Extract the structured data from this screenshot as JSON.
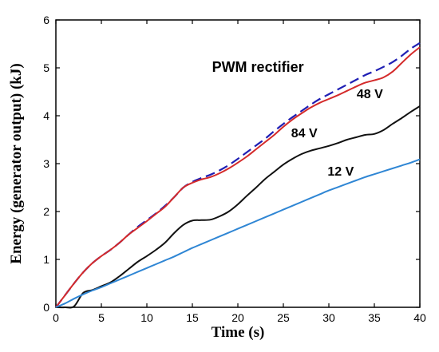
{
  "chart_data": {
    "type": "line",
    "xlabel": "Time (s)",
    "ylabel": "Energy (generator output) (kJ)",
    "xlim": [
      0,
      40
    ],
    "ylim": [
      0,
      6
    ],
    "xticks": [
      0,
      5,
      10,
      15,
      20,
      25,
      30,
      35,
      40
    ],
    "yticks": [
      0,
      1,
      2,
      3,
      4,
      5,
      6
    ],
    "grid": false,
    "annotations": [
      {
        "text": "PWM rectifier",
        "x": 22.2,
        "y": 4.92
      },
      {
        "text": "48 V",
        "x": 34.5,
        "y": 4.37
      },
      {
        "text": "84 V",
        "x": 27.3,
        "y": 3.55
      },
      {
        "text": "12 V",
        "x": 31.3,
        "y": 2.75
      }
    ],
    "series": [
      {
        "color": "#1f1fb4",
        "dashed": true,
        "x": [
          0,
          1,
          2,
          3,
          4,
          5,
          6,
          7,
          8,
          9,
          10,
          11,
          12,
          13,
          14,
          15,
          16,
          17,
          18,
          19,
          20,
          21,
          22,
          23,
          24,
          25,
          26,
          27,
          28,
          29,
          30,
          31,
          32,
          33,
          34,
          35,
          36,
          37,
          38,
          39,
          40
        ],
        "values": [
          0,
          0.25,
          0.5,
          0.73,
          0.92,
          1.07,
          1.2,
          1.35,
          1.52,
          1.68,
          1.82,
          1.96,
          2.12,
          2.3,
          2.5,
          2.62,
          2.7,
          2.77,
          2.86,
          2.97,
          3.1,
          3.24,
          3.38,
          3.52,
          3.68,
          3.83,
          3.97,
          4.1,
          4.23,
          4.35,
          4.45,
          4.55,
          4.65,
          4.75,
          4.85,
          4.93,
          5.02,
          5.12,
          5.25,
          5.4,
          5.52
        ]
      },
      {
        "color": "#d42a2a",
        "dashed": false,
        "x": [
          0,
          1,
          2,
          3,
          4,
          5,
          6,
          7,
          8,
          9,
          10,
          11,
          12,
          13,
          14,
          15,
          16,
          17,
          18,
          19,
          20,
          21,
          22,
          23,
          24,
          25,
          26,
          27,
          28,
          29,
          30,
          31,
          32,
          33,
          34,
          35,
          36,
          37,
          38,
          39,
          40
        ],
        "values": [
          0,
          0.25,
          0.5,
          0.73,
          0.92,
          1.07,
          1.2,
          1.35,
          1.52,
          1.66,
          1.8,
          1.95,
          2.1,
          2.3,
          2.5,
          2.6,
          2.67,
          2.72,
          2.8,
          2.9,
          3.02,
          3.15,
          3.3,
          3.45,
          3.6,
          3.77,
          3.92,
          4.05,
          4.17,
          4.27,
          4.35,
          4.43,
          4.52,
          4.61,
          4.69,
          4.74,
          4.8,
          4.92,
          5.1,
          5.28,
          5.43
        ]
      },
      {
        "color": "#111111",
        "dashed": false,
        "x": [
          0,
          1,
          2,
          3,
          4,
          5,
          6,
          7,
          8,
          9,
          10,
          11,
          12,
          13,
          14,
          15,
          16,
          17,
          18,
          19,
          20,
          21,
          22,
          23,
          24,
          25,
          26,
          27,
          28,
          29,
          30,
          31,
          32,
          33,
          34,
          35,
          36,
          37,
          38,
          39,
          40
        ],
        "values": [
          0,
          0,
          0.02,
          0.3,
          0.36,
          0.44,
          0.52,
          0.65,
          0.8,
          0.95,
          1.07,
          1.2,
          1.35,
          1.55,
          1.72,
          1.81,
          1.82,
          1.83,
          1.9,
          2.0,
          2.15,
          2.33,
          2.5,
          2.68,
          2.83,
          2.98,
          3.1,
          3.2,
          3.27,
          3.32,
          3.37,
          3.43,
          3.5,
          3.55,
          3.6,
          3.62,
          3.7,
          3.83,
          3.95,
          4.08,
          4.2
        ]
      },
      {
        "color": "#2f86d4",
        "dashed": false,
        "x": [
          0,
          1,
          2,
          3,
          4,
          5,
          6,
          7,
          8,
          9,
          10,
          11,
          12,
          13,
          14,
          15,
          16,
          17,
          18,
          19,
          20,
          21,
          22,
          23,
          24,
          25,
          26,
          27,
          28,
          29,
          30,
          31,
          32,
          33,
          34,
          35,
          36,
          37,
          38,
          39,
          40
        ],
        "values": [
          0,
          0.08,
          0.18,
          0.27,
          0.35,
          0.42,
          0.5,
          0.58,
          0.66,
          0.74,
          0.82,
          0.9,
          0.98,
          1.06,
          1.15,
          1.24,
          1.32,
          1.4,
          1.48,
          1.56,
          1.64,
          1.72,
          1.8,
          1.88,
          1.96,
          2.04,
          2.12,
          2.2,
          2.28,
          2.36,
          2.44,
          2.51,
          2.58,
          2.65,
          2.72,
          2.78,
          2.84,
          2.9,
          2.96,
          3.02,
          3.09
        ]
      }
    ]
  }
}
